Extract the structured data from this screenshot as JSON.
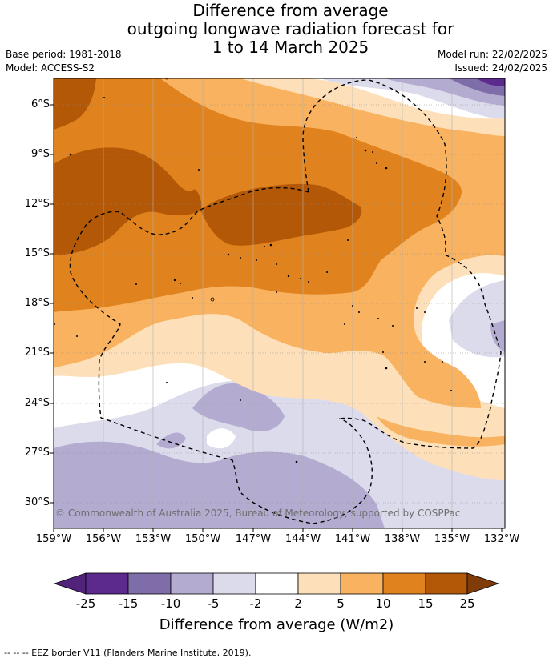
{
  "title": {
    "line1": "Difference from average",
    "line2": "outgoing longwave radiation forecast for",
    "line3": "1 to 14 March 2025"
  },
  "meta": {
    "base_period": "Base period: 1981-2018",
    "model": "Model: ACCESS-S2",
    "model_run": "Model run: 22/02/2025",
    "issued": "Issued: 24/02/2025"
  },
  "map": {
    "copyright": "© Commonwealth of Australia 2025, Bureau of Meteorology, supported by COSPPac",
    "lat_labels": [
      "6°S",
      "9°S",
      "12°S",
      "15°S",
      "18°S",
      "21°S",
      "24°S",
      "27°S",
      "30°S"
    ],
    "lon_labels": [
      "159°W",
      "156°W",
      "153°W",
      "150°W",
      "147°W",
      "144°W",
      "141°W",
      "138°W",
      "135°W",
      "132°W"
    ]
  },
  "colorbar": {
    "ticks": [
      "-25",
      "-15",
      "-10",
      "-5",
      "-2",
      "2",
      "5",
      "10",
      "15",
      "25"
    ],
    "colors": [
      "#51237a",
      "#5b2a8c",
      "#7f6da9",
      "#b3acd0",
      "#dcdbec",
      "#ffffff",
      "#fde0b9",
      "#f9b25f",
      "#e0821d",
      "#b35806",
      "#7f3b08"
    ],
    "title": "Difference from average (W/m2)"
  },
  "footnote": "--  --  -- EEZ border V11 (Flanders Marine Institute, 2019)."
}
